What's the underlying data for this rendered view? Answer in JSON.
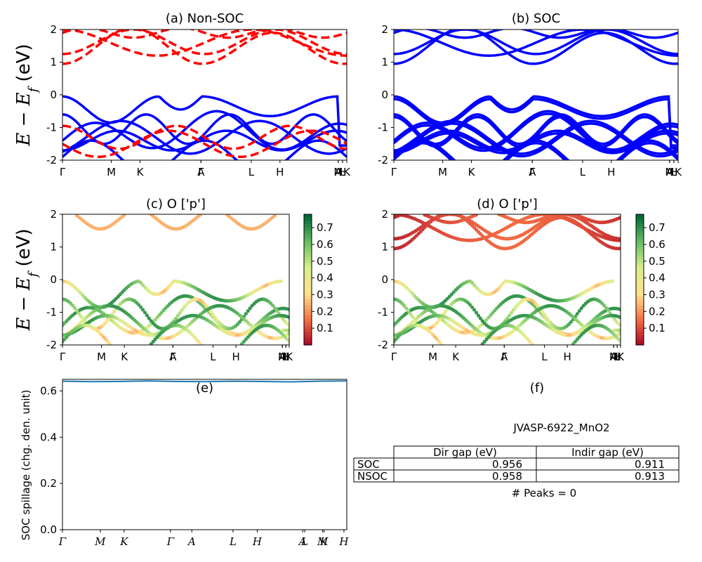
{
  "panels": {
    "a": {
      "title": "(a) Non-SOC"
    },
    "b": {
      "title": "(b) SOC"
    },
    "c": {
      "title": "(c)  O ['p']"
    },
    "d": {
      "title": "(d) O ['p']"
    },
    "e": {
      "title": "(e)"
    },
    "f": {
      "title": "(f)"
    }
  },
  "ylabel_band": "E − E",
  "ylabel_band_sub": "f",
  "ylabel_band_unit": " (eV)",
  "ylabel_spillage": "SOC spillage (chg. den. unit)",
  "band_xticks": [
    "Γ",
    "M",
    "K",
    "Γ",
    "A",
    "L",
    "H",
    "A",
    "M",
    "L",
    "H",
    "K"
  ],
  "spill_xticks": [
    "Γ",
    "M",
    "K",
    "Γ",
    "A",
    "L",
    "H",
    "A",
    "L",
    "M",
    "K",
    "H"
  ],
  "colorbar_ticks": [
    "0.7",
    "0.6",
    "0.5",
    "0.4",
    "0.3",
    "0.2",
    "0.1"
  ],
  "table": {
    "caption": "JVASP-6922_MnO2",
    "headers": [
      "Dir gap (eV)",
      "Indir gap (eV)"
    ],
    "rows": [
      {
        "label": "SOC",
        "dir": "0.956",
        "indir": "0.911"
      },
      {
        "label": "NSOC",
        "dir": "0.958",
        "indir": "0.913"
      }
    ],
    "peaks": "# Peaks = 0"
  },
  "colors": {
    "nsoc": "#ff0000",
    "soc": "#0000ff",
    "spill": "#1f77b4"
  },
  "chart_data": [
    {
      "type": "line",
      "panel": "a",
      "title": "(a) Non-SOC",
      "ylabel": "E − E_f (eV)",
      "ylim": [
        -2,
        2
      ],
      "yticks": [
        -2,
        -1,
        0,
        1,
        2
      ],
      "kpath": [
        "Γ",
        "M",
        "K",
        "Γ",
        "A",
        "L",
        "H",
        "A",
        "M",
        "L",
        "H",
        "K"
      ],
      "series": [
        {
          "style": "solid-blue",
          "x": [
            0,
            0.08,
            0.17,
            0.25,
            0.33,
            0.42,
            0.5,
            0.58,
            0.67,
            0.75,
            0.83,
            0.92,
            1.0
          ],
          "y": [
            0.0,
            -0.05,
            -0.5,
            -0.85,
            -0.4,
            -0.05,
            0.0,
            -0.3,
            -0.7,
            -0.3,
            -0.1,
            -0.6,
            -1.6
          ]
        },
        {
          "style": "dashed-red",
          "x": [
            0,
            0.08,
            0.17,
            0.25,
            0.33,
            0.42,
            0.5,
            0.58,
            0.67,
            0.75,
            0.83,
            0.92,
            1.0
          ],
          "y": [
            0.95,
            1.4,
            1.9,
            2.0,
            1.8,
            1.3,
            0.95,
            1.3,
            1.85,
            1.9,
            1.5,
            1.3,
            1.3
          ]
        }
      ]
    },
    {
      "type": "line",
      "panel": "b",
      "title": "(b) SOC",
      "ylim": [
        -2,
        2
      ],
      "yticks": [
        -2,
        -1,
        0,
        1,
        2
      ],
      "kpath": [
        "Γ",
        "M",
        "K",
        "Γ",
        "A",
        "L",
        "H",
        "A",
        "M",
        "L",
        "H",
        "K"
      ],
      "series": [
        {
          "style": "solid-blue",
          "x": [
            0,
            0.08,
            0.17,
            0.25,
            0.33,
            0.42,
            0.5,
            0.58,
            0.67,
            0.75,
            0.83,
            0.92,
            1.0
          ],
          "y": [
            0.0,
            -0.05,
            -0.5,
            -0.85,
            -0.4,
            -0.05,
            0.0,
            -0.3,
            -0.7,
            -0.3,
            -0.1,
            -0.6,
            -1.6
          ]
        },
        {
          "style": "solid-blue",
          "x": [
            0,
            0.08,
            0.17,
            0.25,
            0.33,
            0.42,
            0.5,
            0.58,
            0.67,
            0.75,
            0.83,
            0.92,
            1.0
          ],
          "y": [
            0.95,
            1.4,
            1.9,
            2.0,
            1.8,
            1.3,
            0.95,
            1.3,
            1.85,
            1.9,
            1.5,
            1.3,
            1.3
          ]
        }
      ]
    },
    {
      "type": "scatter",
      "panel": "c",
      "title": "(c)  O ['p']",
      "ylim": [
        -2,
        2
      ],
      "colorbar": {
        "cmap": "RdYlGn",
        "ticks": [
          0.1,
          0.2,
          0.3,
          0.4,
          0.5,
          0.6,
          0.7
        ]
      }
    },
    {
      "type": "scatter",
      "panel": "d",
      "title": "(d) O ['p']",
      "ylim": [
        -2,
        2
      ],
      "colorbar": {
        "cmap": "RdYlGn",
        "ticks": [
          0.1,
          0.2,
          0.3,
          0.4,
          0.5,
          0.6,
          0.7
        ]
      }
    },
    {
      "type": "line",
      "panel": "e",
      "title": "(e)",
      "ylabel": "SOC spillage (chg. den. unit)",
      "ylim": [
        0.0,
        0.65
      ],
      "yticks": [
        0.0,
        0.2,
        0.4,
        0.6
      ],
      "kpath": [
        "Γ",
        "M",
        "K",
        "Γ",
        "A",
        "L",
        "H",
        "A",
        "L",
        "M",
        "K",
        "H"
      ],
      "series": [
        {
          "x": [
            0,
            0.1,
            0.2,
            0.3,
            0.4,
            0.5,
            0.6,
            0.7,
            0.8,
            0.9,
            1.0
          ],
          "y": [
            0.642,
            0.64,
            0.641,
            0.643,
            0.641,
            0.64,
            0.642,
            0.641,
            0.639,
            0.642,
            0.643
          ]
        }
      ]
    }
  ]
}
